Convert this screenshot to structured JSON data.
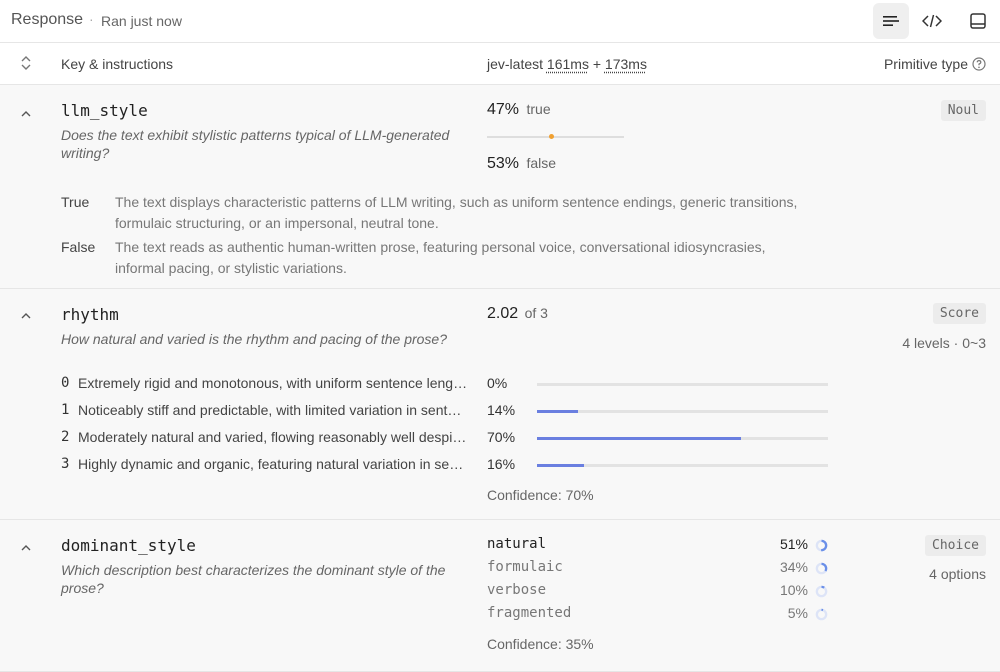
{
  "topbar": {
    "title": "Response",
    "separator": "·",
    "status": "Ran just now",
    "icons": [
      "list-view-icon",
      "code-view-icon",
      "panel-view-icon"
    ]
  },
  "header": {
    "key_label": "Key & instructions",
    "model": "jev-latest",
    "time1": "161ms",
    "plus": "+",
    "time2": "173ms",
    "primitive_label": "Primitive type"
  },
  "items": [
    {
      "name": "llm_style",
      "description": "Does the text exhibit stylistic patterns typical of LLM-generated writing?",
      "type": "Noul",
      "true_pct": "47%",
      "true_label": "true",
      "false_pct": "53%",
      "false_label": "false",
      "true_fraction": 0.47,
      "definitions": [
        {
          "key": "True",
          "text": "The text displays characteristic patterns of LLM writing, such as uniform sentence endings, generic transitions, formulaic structuring, or an impersonal, neutral tone."
        },
        {
          "key": "False",
          "text": "The text reads as authentic human-written prose, featuring personal voice, conversational idiosyncrasies, informal pacing, or stylistic variations."
        }
      ]
    },
    {
      "name": "rhythm",
      "description": "How natural and varied is the rhythm and pacing of the prose?",
      "type": "Score",
      "subnote": "4 levels · 0~3",
      "score": "2.02",
      "of": "of 3",
      "levels": [
        {
          "n": "0",
          "text": "Extremely rigid and monotonous, with uniform sentence length and predictable cadence",
          "pct": "0%",
          "value": 0.0
        },
        {
          "n": "1",
          "text": "Noticeably stiff and predictable, with limited variation in sentence structure",
          "pct": "14%",
          "value": 0.14
        },
        {
          "n": "2",
          "text": "Moderately natural and varied, flowing reasonably well despite some repetition",
          "pct": "70%",
          "value": 0.7
        },
        {
          "n": "3",
          "text": "Highly dynamic and organic, featuring natural variation in sentence length",
          "pct": "16%",
          "value": 0.16
        }
      ],
      "confidence": "Confidence: 70%"
    },
    {
      "name": "dominant_style",
      "description": "Which description best characterizes the dominant style of the prose?",
      "type": "Choice",
      "subnote": "4 options",
      "options": [
        {
          "label": "natural",
          "pct": "51%",
          "value": 0.51
        },
        {
          "label": "formulaic",
          "pct": "34%",
          "value": 0.34
        },
        {
          "label": "verbose",
          "pct": "10%",
          "value": 0.1
        },
        {
          "label": "fragmented",
          "pct": "5%",
          "value": 0.05
        }
      ],
      "confidence": "Confidence: 35%"
    }
  ],
  "colors": {
    "accent_bar": "#6a7fe0",
    "slider_dot": "#f0a030",
    "ring": "#6a8fe8"
  }
}
